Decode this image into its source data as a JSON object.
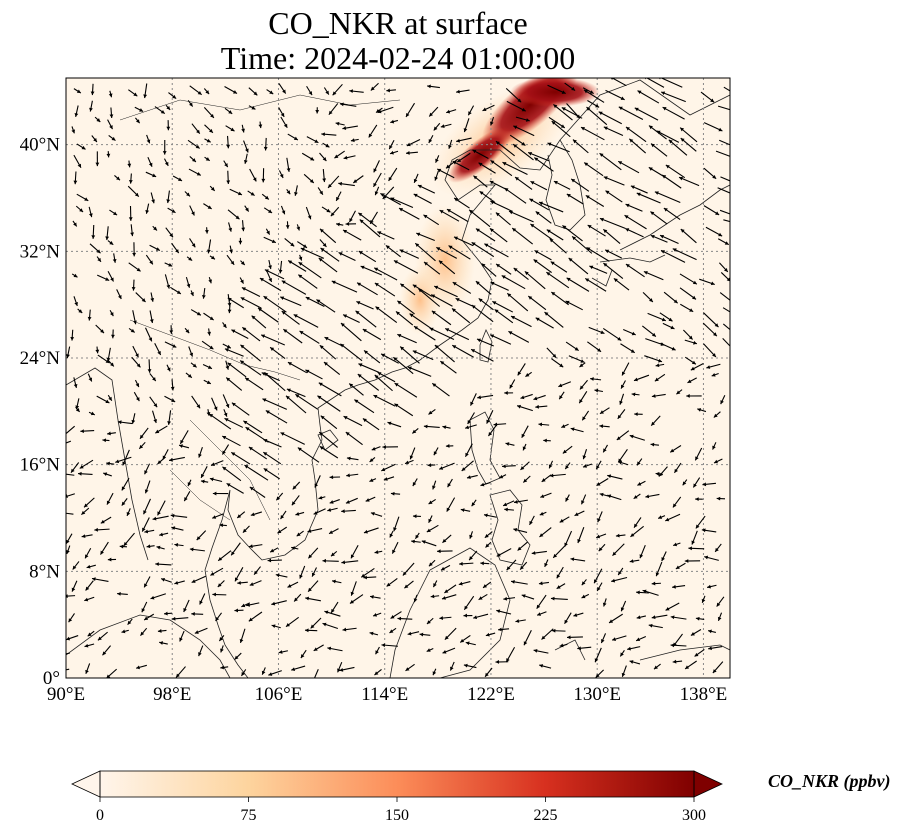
{
  "title": "CO_NKR at surface",
  "subtitle": "Time: 2024-02-24 01:00:00",
  "map": {
    "lon_range": [
      90,
      140
    ],
    "lat_range": [
      0,
      45
    ],
    "x_ticks": [
      {
        "lon": 90,
        "label": "90°E"
      },
      {
        "lon": 98,
        "label": "98°E"
      },
      {
        "lon": 106,
        "label": "106°E"
      },
      {
        "lon": 114,
        "label": "114°E"
      },
      {
        "lon": 122,
        "label": "122°E"
      },
      {
        "lon": 130,
        "label": "130°E"
      },
      {
        "lon": 138,
        "label": "138°E"
      }
    ],
    "y_ticks": [
      {
        "lat": 0,
        "label": "0°"
      },
      {
        "lat": 8,
        "label": "8°N"
      },
      {
        "lat": 16,
        "label": "16°N"
      },
      {
        "lat": 24,
        "label": "24°N"
      },
      {
        "lat": 32,
        "label": "32°N"
      },
      {
        "lat": 40,
        "label": "40°N"
      }
    ],
    "gridlines": true,
    "background_color": "#fff5e8",
    "coastline_color": "#222222"
  },
  "colorbar": {
    "label": "CO_NKR (ppbv)",
    "min": 0,
    "max": 300,
    "ticks": [
      {
        "value": 0,
        "label": "0"
      },
      {
        "value": 75,
        "label": "75"
      },
      {
        "value": 150,
        "label": "150"
      },
      {
        "value": 225,
        "label": "225"
      },
      {
        "value": 300,
        "label": "300"
      }
    ],
    "colors": [
      "#fff5eb",
      "#fdd49e",
      "#fc8d59",
      "#d7301f",
      "#7f0000"
    ],
    "extend": "both"
  }
}
